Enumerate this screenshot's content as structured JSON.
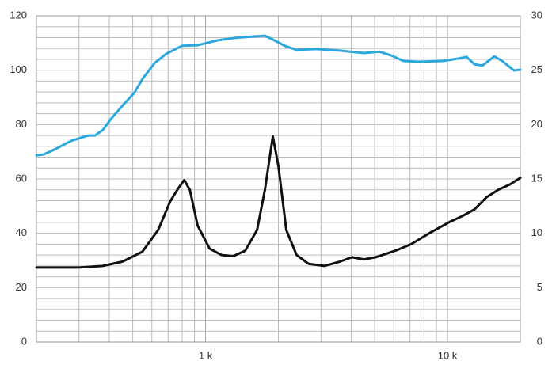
{
  "chart_data": {
    "type": "line",
    "xlim": [
      200,
      20000
    ],
    "xlog": true,
    "xticks": [
      {
        "value": 1000,
        "label": "1 k"
      },
      {
        "value": 10000,
        "label": "10 k"
      }
    ],
    "xgrid": [
      200,
      300,
      400,
      500,
      600,
      700,
      800,
      900,
      1000,
      2000,
      3000,
      4000,
      5000,
      6000,
      7000,
      8000,
      9000,
      10000,
      20000
    ],
    "ylim": [
      0,
      120
    ],
    "yticks": [
      0,
      20,
      40,
      60,
      80,
      100,
      120
    ],
    "ygrid": [
      0,
      4,
      8,
      12,
      16,
      20,
      24,
      28,
      32,
      36,
      40,
      44,
      48,
      52,
      56,
      60,
      64,
      68,
      72,
      76,
      80,
      84,
      88,
      92,
      96,
      100,
      104,
      108,
      112,
      116,
      120
    ],
    "y2lim": [
      0,
      30
    ],
    "y2ticks": [
      0,
      5,
      10,
      15,
      20,
      25,
      30
    ],
    "grid": true,
    "series": [
      {
        "color": "#2aa7dd",
        "x": [
          200,
          214,
          240,
          278,
          312,
          329,
          349,
          376,
          406,
          454,
          509,
          548,
          614,
          687,
          799,
          928,
          1121,
          1353,
          1572,
          1760,
          1897,
          2124,
          2378,
          2871,
          3596,
          4508,
          5240,
          5868,
          6568,
          7631,
          9566,
          11122,
          11990,
          12932,
          13936,
          15604,
          16828,
          18834,
          20000
        ],
        "values": [
          68.7,
          69,
          71,
          74,
          75.4,
          76,
          76,
          78,
          82,
          87,
          91.8,
          96.7,
          102.5,
          106,
          109,
          109.2,
          111,
          112,
          112.4,
          112.7,
          111.3,
          109,
          107.5,
          107.8,
          107.2,
          106.3,
          106.8,
          105.4,
          103.4,
          103.1,
          103.4,
          104.3,
          104.9,
          102.2,
          101.7,
          105.1,
          103.4,
          99.9,
          100.2
        ]
      },
      {
        "color": "#111111",
        "axis": "y2",
        "x": [
          200,
          300,
          376,
          454,
          548,
          637,
          713,
          769,
          817,
          861,
          928,
          1039,
          1164,
          1302,
          1458,
          1633,
          1760,
          1897,
          2000,
          2156,
          2378,
          2662,
          3094,
          3596,
          4028,
          4508,
          5046,
          6092,
          7080,
          8546,
          10316,
          11548,
          12932,
          14472,
          16200,
          18140,
          20000
        ],
        "values": [
          6.85,
          6.85,
          7.0,
          7.4,
          8.3,
          10.3,
          12.9,
          14.1,
          14.9,
          14.0,
          10.7,
          8.6,
          8.0,
          7.9,
          8.4,
          10.3,
          14.0,
          18.9,
          16.2,
          10.3,
          8.0,
          7.2,
          7.0,
          7.4,
          7.8,
          7.6,
          7.8,
          8.4,
          9.0,
          10.1,
          11.1,
          11.6,
          12.2,
          13.3,
          14.0,
          14.5,
          15.1
        ]
      }
    ]
  }
}
